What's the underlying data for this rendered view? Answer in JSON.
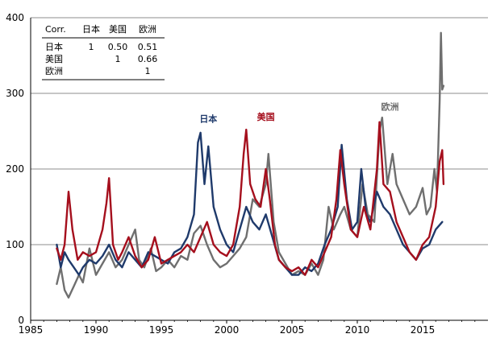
{
  "chart_data": {
    "type": "line",
    "title": "",
    "xlabel": "",
    "ylabel": "",
    "xlim": [
      1985,
      2020
    ],
    "ylim": [
      0,
      400
    ],
    "x_ticks": [
      "1985",
      "1990",
      "1995",
      "2000",
      "2005",
      "2010",
      "2015"
    ],
    "y_ticks": [
      "0",
      "100",
      "200",
      "300",
      "400"
    ],
    "grid": "horizontal",
    "legend": "inline labels",
    "series": [
      {
        "name": "欧洲",
        "color": "#6f6f6f",
        "points": [
          [
            1987.0,
            48
          ],
          [
            1987.3,
            70
          ],
          [
            1987.6,
            40
          ],
          [
            1987.9,
            30
          ],
          [
            1988.3,
            45
          ],
          [
            1988.7,
            60
          ],
          [
            1989.0,
            50
          ],
          [
            1989.5,
            95
          ],
          [
            1990.0,
            60
          ],
          [
            1990.5,
            75
          ],
          [
            1991.0,
            90
          ],
          [
            1991.5,
            70
          ],
          [
            1992.0,
            80
          ],
          [
            1992.5,
            100
          ],
          [
            1993.0,
            120
          ],
          [
            1993.3,
            80
          ],
          [
            1993.7,
            70
          ],
          [
            1994.2,
            95
          ],
          [
            1994.6,
            65
          ],
          [
            1995.0,
            70
          ],
          [
            1995.5,
            80
          ],
          [
            1996.0,
            70
          ],
          [
            1996.5,
            85
          ],
          [
            1997.0,
            80
          ],
          [
            1997.5,
            115
          ],
          [
            1998.0,
            125
          ],
          [
            1998.5,
            100
          ],
          [
            1999.0,
            80
          ],
          [
            1999.5,
            70
          ],
          [
            2000.0,
            75
          ],
          [
            2000.5,
            85
          ],
          [
            2001.0,
            95
          ],
          [
            2001.5,
            110
          ],
          [
            2002.0,
            160
          ],
          [
            2002.5,
            150
          ],
          [
            2003.0,
            180
          ],
          [
            2003.2,
            220
          ],
          [
            2003.6,
            130
          ],
          [
            2004.0,
            90
          ],
          [
            2004.5,
            75
          ],
          [
            2005.0,
            60
          ],
          [
            2005.5,
            65
          ],
          [
            2006.0,
            60
          ],
          [
            2006.5,
            75
          ],
          [
            2007.0,
            60
          ],
          [
            2007.4,
            80
          ],
          [
            2007.8,
            150
          ],
          [
            2008.2,
            120
          ],
          [
            2008.7,
            140
          ],
          [
            2009.0,
            150
          ],
          [
            2009.5,
            120
          ],
          [
            2010.0,
            110
          ],
          [
            2010.4,
            180
          ],
          [
            2010.8,
            140
          ],
          [
            2011.3,
            130
          ],
          [
            2011.7,
            250
          ],
          [
            2011.9,
            268
          ],
          [
            2012.3,
            180
          ],
          [
            2012.7,
            220
          ],
          [
            2013.0,
            180
          ],
          [
            2013.5,
            160
          ],
          [
            2014.0,
            140
          ],
          [
            2014.5,
            150
          ],
          [
            2015.0,
            175
          ],
          [
            2015.3,
            140
          ],
          [
            2015.6,
            150
          ],
          [
            2015.9,
            200
          ],
          [
            2016.1,
            170
          ],
          [
            2016.3,
            290
          ],
          [
            2016.4,
            380
          ],
          [
            2016.5,
            305
          ],
          [
            2016.6,
            310
          ]
        ]
      },
      {
        "name": "日本",
        "color": "#1f3a6b",
        "points": [
          [
            1987.0,
            100
          ],
          [
            1987.3,
            70
          ],
          [
            1987.6,
            90
          ],
          [
            1987.9,
            80
          ],
          [
            1988.3,
            70
          ],
          [
            1988.7,
            60
          ],
          [
            1989.0,
            70
          ],
          [
            1989.5,
            80
          ],
          [
            1990.0,
            75
          ],
          [
            1990.5,
            85
          ],
          [
            1991.0,
            100
          ],
          [
            1991.5,
            80
          ],
          [
            1992.0,
            70
          ],
          [
            1992.5,
            90
          ],
          [
            1993.0,
            80
          ],
          [
            1993.5,
            70
          ],
          [
            1994.0,
            90
          ],
          [
            1994.5,
            85
          ],
          [
            1995.0,
            80
          ],
          [
            1995.5,
            75
          ],
          [
            1996.0,
            90
          ],
          [
            1996.5,
            95
          ],
          [
            1997.0,
            110
          ],
          [
            1997.5,
            140
          ],
          [
            1997.8,
            235
          ],
          [
            1998.0,
            248
          ],
          [
            1998.3,
            180
          ],
          [
            1998.6,
            230
          ],
          [
            1999.0,
            150
          ],
          [
            1999.5,
            120
          ],
          [
            2000.0,
            100
          ],
          [
            2000.5,
            90
          ],
          [
            2001.0,
            120
          ],
          [
            2001.5,
            150
          ],
          [
            2002.0,
            130
          ],
          [
            2002.5,
            120
          ],
          [
            2003.0,
            140
          ],
          [
            2003.5,
            110
          ],
          [
            2004.0,
            80
          ],
          [
            2004.5,
            70
          ],
          [
            2005.0,
            60
          ],
          [
            2005.5,
            60
          ],
          [
            2006.0,
            70
          ],
          [
            2006.5,
            65
          ],
          [
            2007.0,
            75
          ],
          [
            2007.5,
            100
          ],
          [
            2008.0,
            120
          ],
          [
            2008.5,
            150
          ],
          [
            2008.8,
            232
          ],
          [
            2009.2,
            160
          ],
          [
            2009.6,
            120
          ],
          [
            2010.0,
            130
          ],
          [
            2010.3,
            200
          ],
          [
            2010.7,
            140
          ],
          [
            2011.0,
            130
          ],
          [
            2011.5,
            170
          ],
          [
            2012.0,
            150
          ],
          [
            2012.5,
            140
          ],
          [
            2013.0,
            120
          ],
          [
            2013.5,
            100
          ],
          [
            2014.0,
            90
          ],
          [
            2014.5,
            80
          ],
          [
            2015.0,
            95
          ],
          [
            2015.5,
            100
          ],
          [
            2016.0,
            120
          ],
          [
            2016.5,
            130
          ]
        ]
      },
      {
        "name": "美国",
        "color": "#a50f1d",
        "points": [
          [
            1987.0,
            95
          ],
          [
            1987.3,
            80
          ],
          [
            1987.6,
            100
          ],
          [
            1987.9,
            170
          ],
          [
            1988.2,
            120
          ],
          [
            1988.6,
            80
          ],
          [
            1989.0,
            90
          ],
          [
            1989.5,
            85
          ],
          [
            1990.0,
            90
          ],
          [
            1990.5,
            120
          ],
          [
            1990.8,
            155
          ],
          [
            1991.0,
            188
          ],
          [
            1991.3,
            100
          ],
          [
            1991.7,
            80
          ],
          [
            1992.0,
            90
          ],
          [
            1992.5,
            110
          ],
          [
            1993.0,
            85
          ],
          [
            1993.5,
            70
          ],
          [
            1994.0,
            80
          ],
          [
            1994.5,
            110
          ],
          [
            1995.0,
            75
          ],
          [
            1995.5,
            80
          ],
          [
            1996.0,
            85
          ],
          [
            1996.5,
            90
          ],
          [
            1997.0,
            100
          ],
          [
            1997.5,
            90
          ],
          [
            1998.0,
            110
          ],
          [
            1998.5,
            130
          ],
          [
            1999.0,
            100
          ],
          [
            1999.5,
            90
          ],
          [
            2000.0,
            85
          ],
          [
            2000.5,
            100
          ],
          [
            2001.0,
            150
          ],
          [
            2001.3,
            220
          ],
          [
            2001.5,
            252
          ],
          [
            2001.8,
            180
          ],
          [
            2002.2,
            160
          ],
          [
            2002.6,
            150
          ],
          [
            2003.0,
            200
          ],
          [
            2003.3,
            160
          ],
          [
            2003.7,
            100
          ],
          [
            2004.0,
            80
          ],
          [
            2004.5,
            70
          ],
          [
            2005.0,
            65
          ],
          [
            2005.5,
            70
          ],
          [
            2006.0,
            60
          ],
          [
            2006.5,
            80
          ],
          [
            2007.0,
            70
          ],
          [
            2007.5,
            90
          ],
          [
            2008.0,
            110
          ],
          [
            2008.4,
            160
          ],
          [
            2008.7,
            225
          ],
          [
            2009.0,
            180
          ],
          [
            2009.5,
            120
          ],
          [
            2010.0,
            110
          ],
          [
            2010.5,
            150
          ],
          [
            2011.0,
            120
          ],
          [
            2011.5,
            200
          ],
          [
            2011.7,
            262
          ],
          [
            2012.0,
            180
          ],
          [
            2012.5,
            170
          ],
          [
            2013.0,
            130
          ],
          [
            2013.5,
            110
          ],
          [
            2014.0,
            90
          ],
          [
            2014.5,
            80
          ],
          [
            2015.0,
            100
          ],
          [
            2015.5,
            110
          ],
          [
            2016.0,
            150
          ],
          [
            2016.3,
            210
          ],
          [
            2016.5,
            225
          ],
          [
            2016.6,
            180
          ]
        ]
      }
    ],
    "annotations": [
      {
        "text": "日本",
        "x": 1998.6,
        "y": 262,
        "color": "#1f3a6b"
      },
      {
        "text": "美国",
        "x": 2003.0,
        "y": 265,
        "color": "#a50f1d"
      },
      {
        "text": "欧洲",
        "x": 2012.5,
        "y": 278,
        "color": "#6f6f6f"
      }
    ],
    "correlation_table": {
      "header": [
        "Corr.",
        "日本",
        "美国",
        "欧洲"
      ],
      "rows": [
        [
          "日本",
          "1",
          "0.50",
          "0.51"
        ],
        [
          "美国",
          "",
          "1",
          "0.66"
        ],
        [
          "欧洲",
          "",
          "",
          "1"
        ]
      ]
    }
  }
}
